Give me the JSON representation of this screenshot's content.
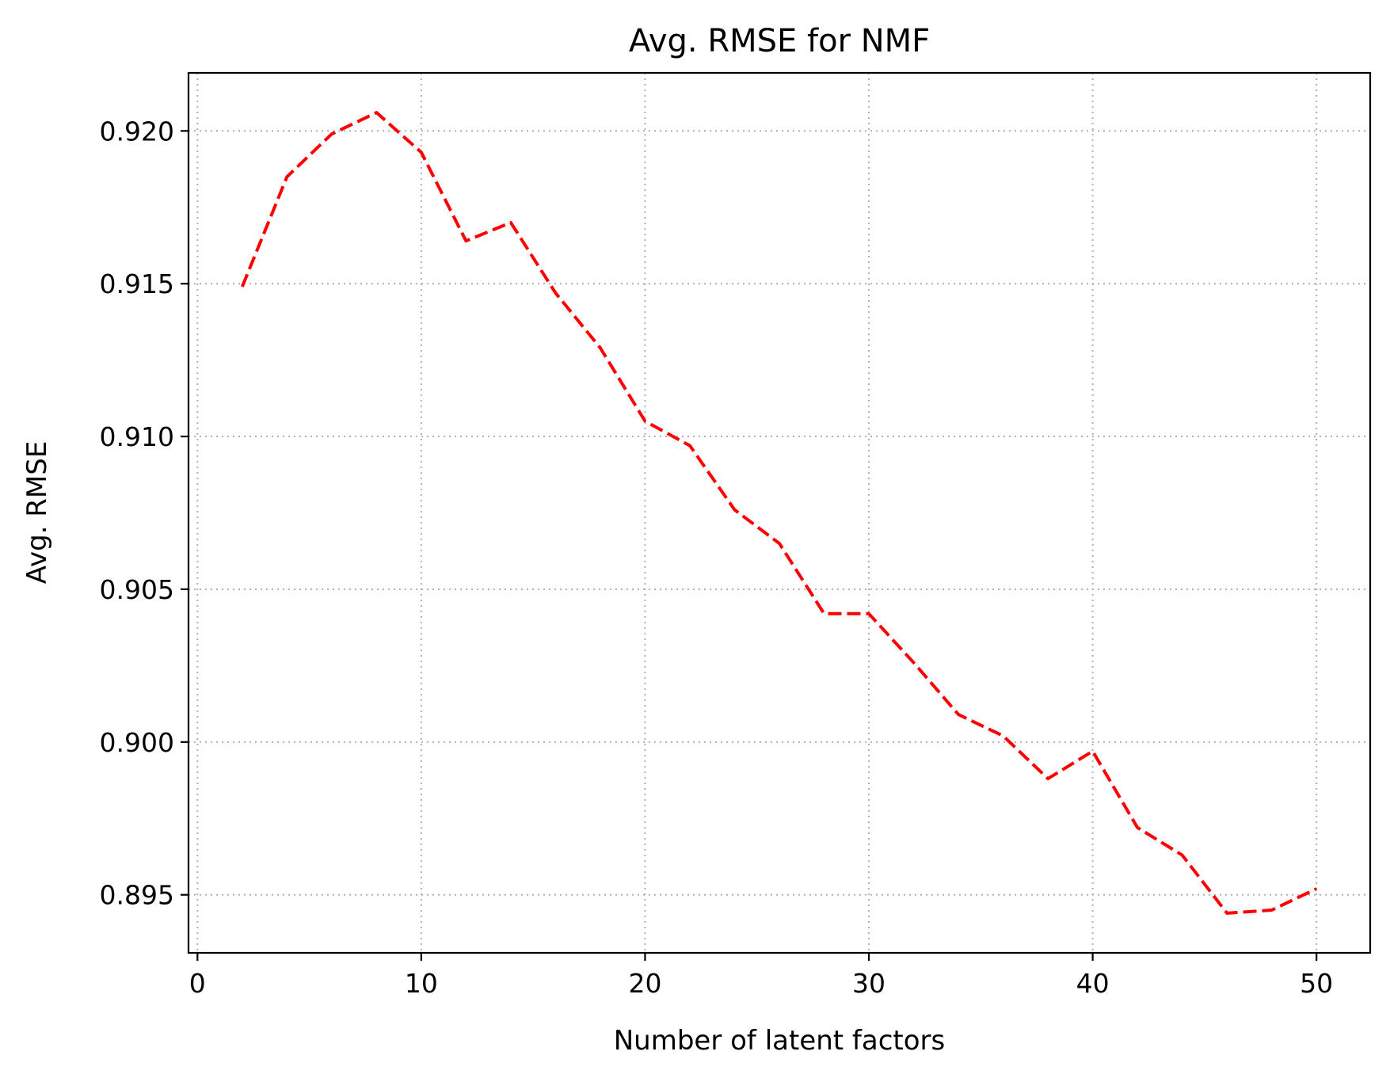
{
  "chart_data": {
    "type": "line",
    "title": "Avg. RMSE for NMF",
    "xlabel": "Number of latent factors",
    "ylabel": "Avg. RMSE",
    "xlim": [
      -0.4,
      52.4
    ],
    "ylim": [
      0.8931,
      0.9219
    ],
    "xticks": [
      0,
      10,
      20,
      30,
      40,
      50
    ],
    "yticks": [
      0.895,
      0.9,
      0.905,
      0.91,
      0.915,
      0.92
    ],
    "xtick_labels": [
      "0",
      "10",
      "20",
      "30",
      "40",
      "50"
    ],
    "ytick_labels": [
      "0.895",
      "0.900",
      "0.905",
      "0.910",
      "0.915",
      "0.920"
    ],
    "grid": true,
    "grid_style": "dotted",
    "series": [
      {
        "color": "#ff0000",
        "linestyle": "dashed",
        "x": [
          2,
          4,
          6,
          8,
          10,
          12,
          14,
          16,
          18,
          20,
          22,
          24,
          26,
          28,
          30,
          32,
          34,
          36,
          38,
          40,
          42,
          44,
          46,
          48,
          50
        ],
        "y": [
          0.9149,
          0.9185,
          0.9199,
          0.9206,
          0.9193,
          0.9164,
          0.917,
          0.9147,
          0.9129,
          0.9105,
          0.9097,
          0.9076,
          0.9065,
          0.9042,
          0.9042,
          0.9026,
          0.9009,
          0.9002,
          0.8988,
          0.8997,
          0.8972,
          0.8963,
          0.8944,
          0.8945,
          0.8952
        ]
      }
    ]
  }
}
